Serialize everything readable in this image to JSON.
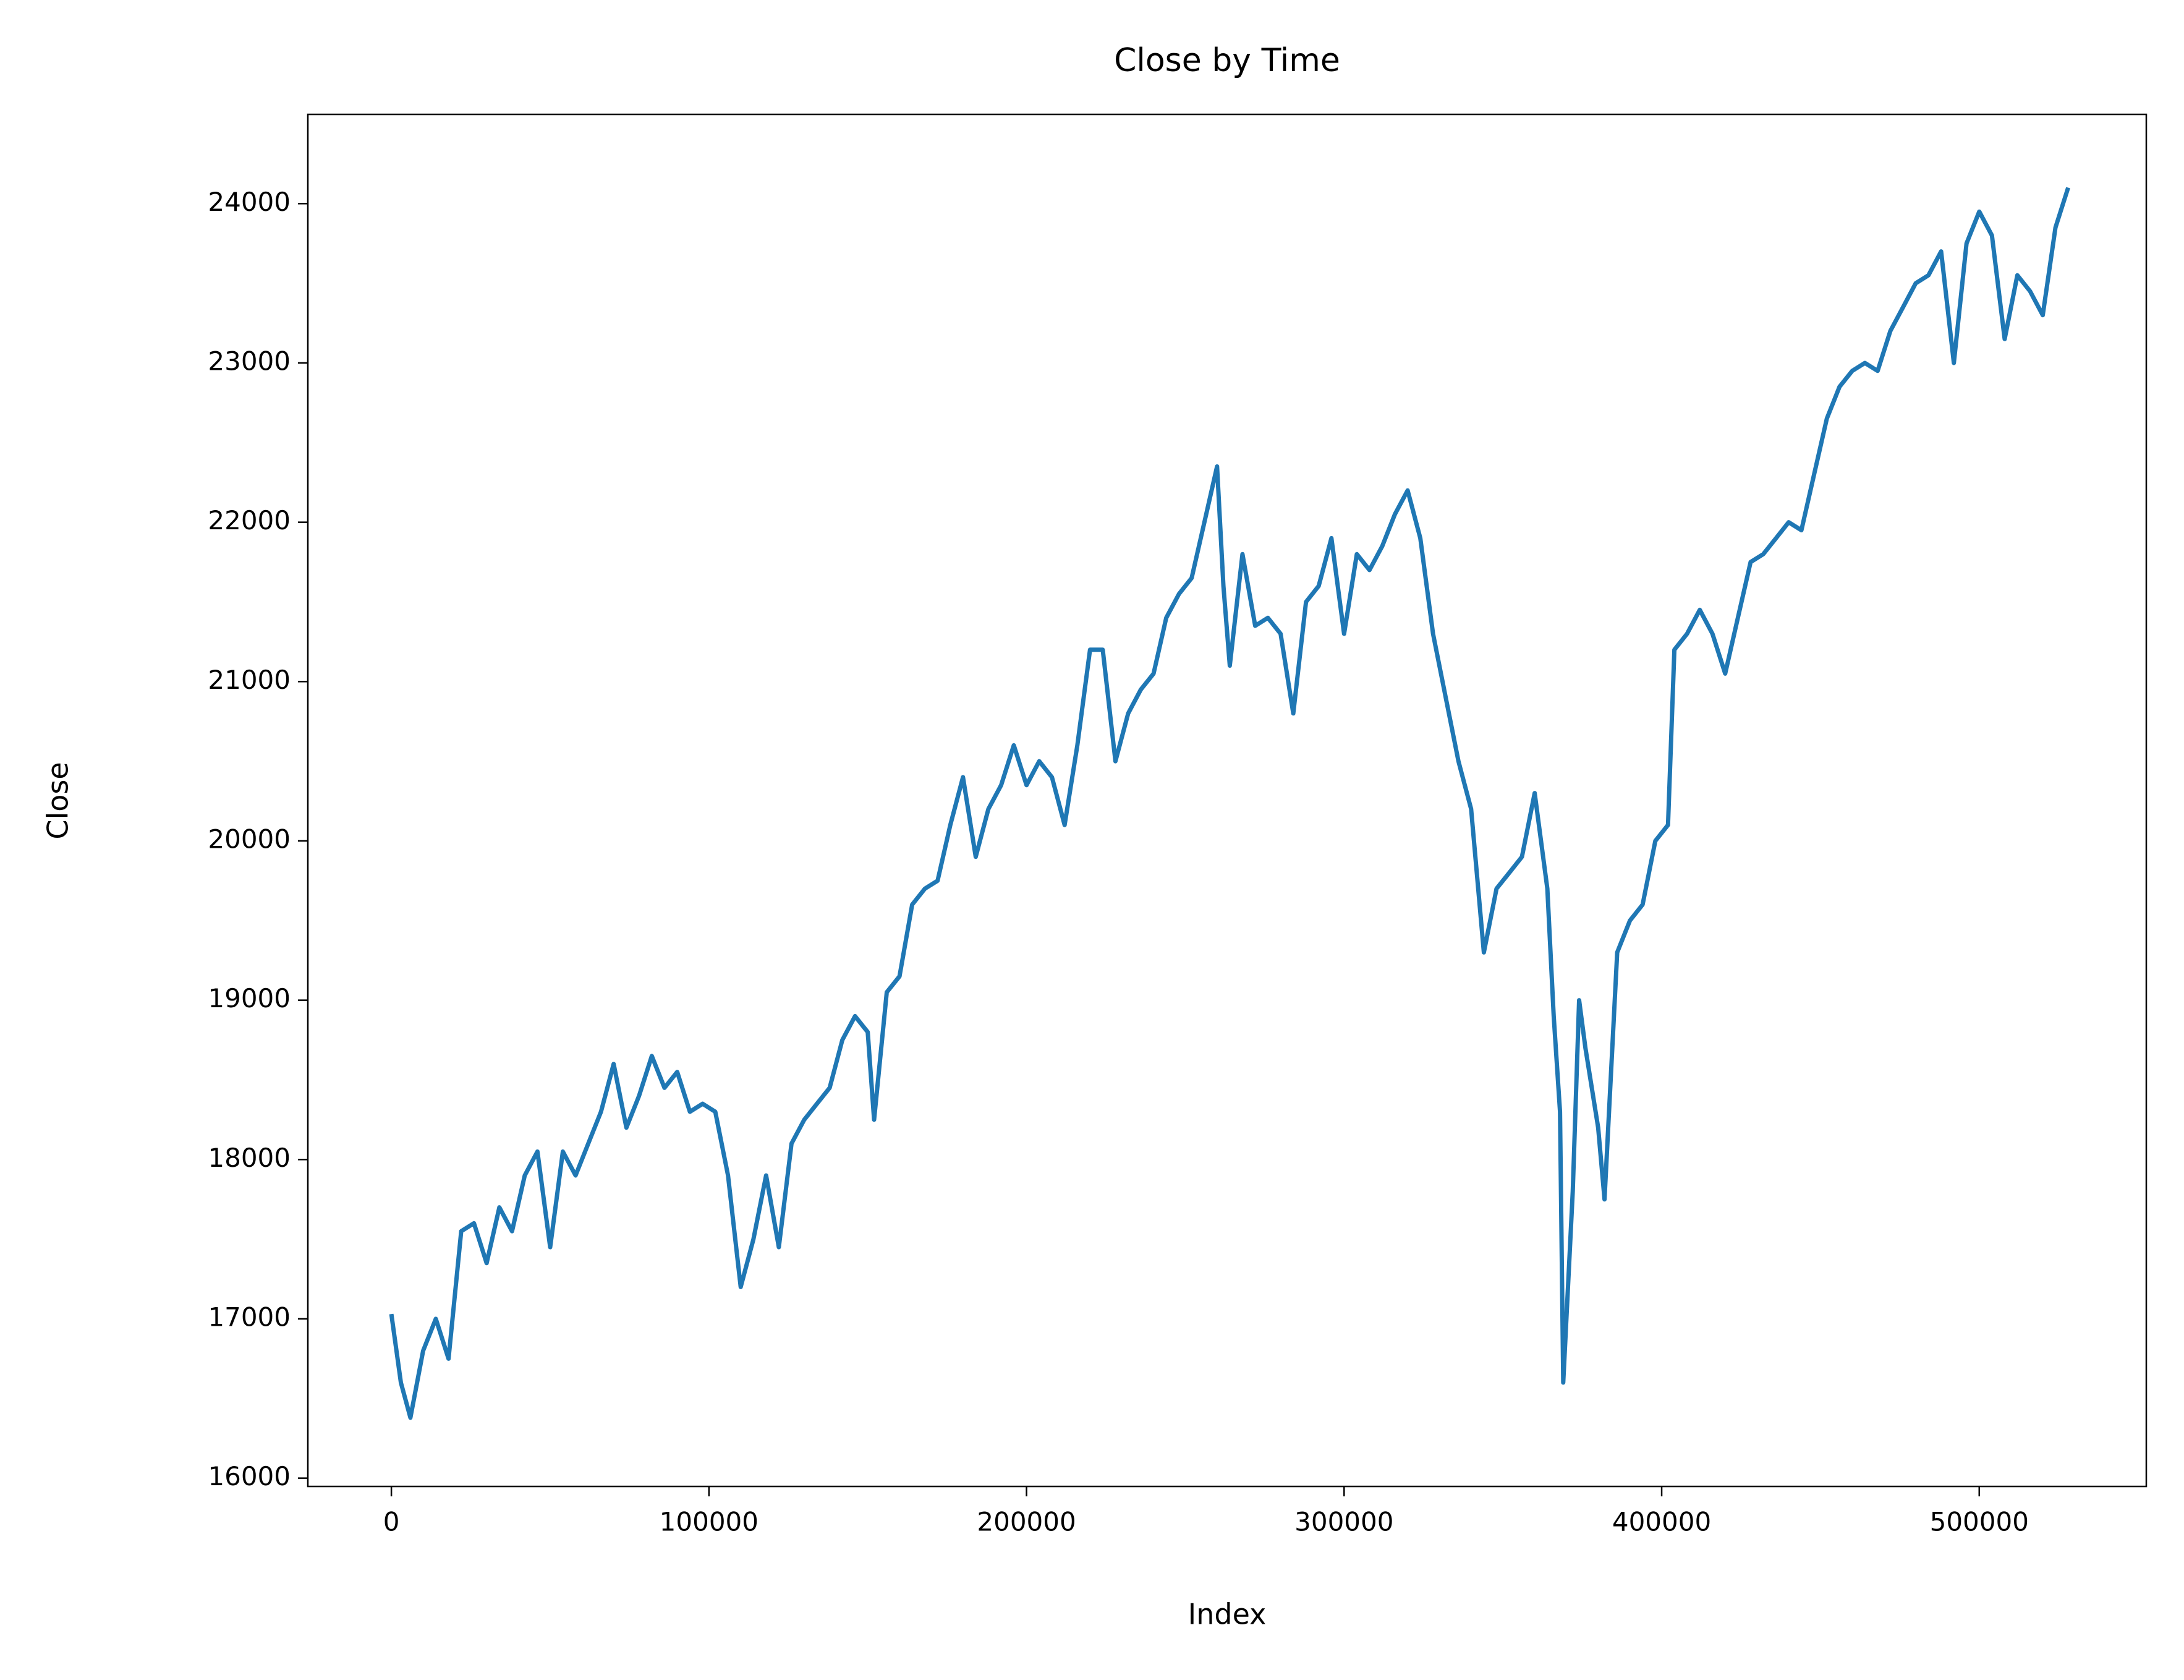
{
  "chart_data": {
    "type": "line",
    "title": "Close by Time",
    "x_label": "Index",
    "y_label": "Close",
    "color": "#1f77b4",
    "grid": false,
    "x": [
      0,
      3000,
      6000,
      10000,
      14000,
      18000,
      22000,
      26000,
      30000,
      34000,
      38000,
      42000,
      46000,
      50000,
      54000,
      58000,
      62000,
      66000,
      70000,
      74000,
      78000,
      82000,
      86000,
      90000,
      94000,
      98000,
      102000,
      106000,
      110000,
      114000,
      118000,
      122000,
      126000,
      130000,
      134000,
      138000,
      142000,
      146000,
      150000,
      152000,
      156000,
      160000,
      164000,
      168000,
      172000,
      176000,
      180000,
      184000,
      188000,
      192000,
      196000,
      200000,
      204000,
      208000,
      212000,
      216000,
      220000,
      224000,
      228000,
      232000,
      236000,
      240000,
      244000,
      248000,
      252000,
      256000,
      260000,
      262000,
      264000,
      268000,
      272000,
      276000,
      280000,
      284000,
      288000,
      292000,
      296000,
      300000,
      304000,
      308000,
      312000,
      316000,
      320000,
      324000,
      328000,
      332000,
      336000,
      340000,
      344000,
      348000,
      352000,
      356000,
      360000,
      364000,
      366000,
      368000,
      369000,
      372000,
      374000,
      376000,
      380000,
      382000,
      386000,
      390000,
      394000,
      398000,
      402000,
      404000,
      408000,
      412000,
      416000,
      420000,
      424000,
      428000,
      432000,
      436000,
      440000,
      444000,
      448000,
      452000,
      456000,
      460000,
      464000,
      468000,
      472000,
      476000,
      480000,
      484000,
      488000,
      492000,
      496000,
      500000,
      504000,
      508000,
      512000,
      516000,
      520000,
      524000,
      528000
    ],
    "values": [
      17030,
      16600,
      16380,
      16800,
      17000,
      16750,
      17550,
      17600,
      17350,
      17700,
      17550,
      17900,
      18050,
      17450,
      18050,
      17900,
      18100,
      18300,
      18600,
      18200,
      18400,
      18650,
      18450,
      18550,
      18300,
      18350,
      18300,
      17900,
      17200,
      17500,
      17900,
      17450,
      18100,
      18250,
      18350,
      18450,
      18750,
      18900,
      18800,
      18250,
      19050,
      19150,
      19600,
      19700,
      19750,
      20100,
      20400,
      19900,
      20200,
      20350,
      20600,
      20350,
      20500,
      20400,
      20100,
      20600,
      21200,
      21200,
      20500,
      20800,
      20950,
      21050,
      21400,
      21550,
      21650,
      22000,
      22350,
      21600,
      21100,
      21800,
      21350,
      21400,
      21300,
      20800,
      21500,
      21600,
      21900,
      21300,
      21800,
      21700,
      21850,
      22050,
      22200,
      21900,
      21300,
      20900,
      20500,
      20200,
      19300,
      19700,
      19800,
      19900,
      20300,
      19700,
      18900,
      18300,
      16600,
      17800,
      19000,
      18700,
      18200,
      17750,
      19300,
      19500,
      19600,
      20000,
      20100,
      21200,
      21300,
      21450,
      21300,
      21050,
      21400,
      21750,
      21800,
      21900,
      22000,
      21950,
      22300,
      22650,
      22850,
      22950,
      23000,
      22950,
      23200,
      23350,
      23500,
      23550,
      23700,
      23000,
      23750,
      23950,
      23800,
      23150,
      23550,
      23450,
      23300,
      23850,
      24100
    ],
    "xlim": [
      -26300,
      552600
    ],
    "ylim": [
      15948,
      24560
    ],
    "xticks": [
      0,
      100000,
      200000,
      300000,
      400000,
      500000
    ],
    "yticks": [
      16000,
      17000,
      18000,
      19000,
      20000,
      21000,
      22000,
      23000,
      24000
    ]
  }
}
